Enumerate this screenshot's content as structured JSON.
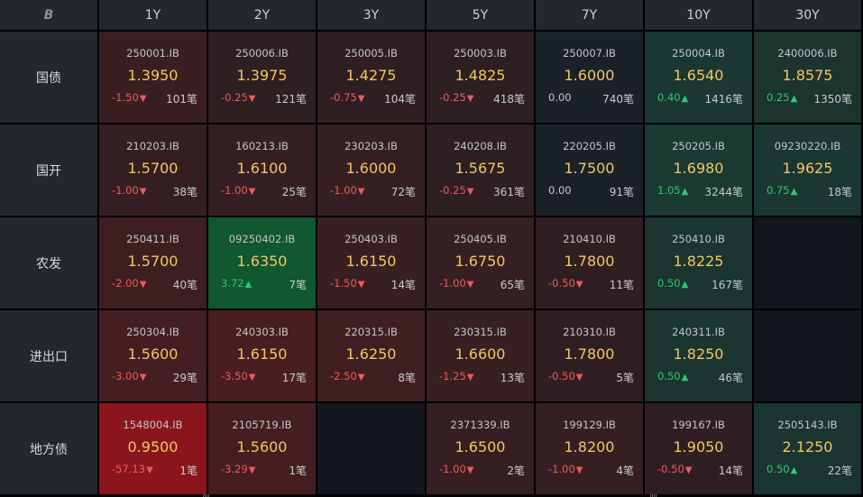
{
  "corner_label": "B",
  "headers": [
    "1Y",
    "2Y",
    "3Y",
    "5Y",
    "7Y",
    "10Y",
    "30Y"
  ],
  "rows": [
    {
      "label": "国债",
      "cells": [
        {
          "code": "250001.IB",
          "price": "1.3950",
          "change": "-1.50",
          "dir": "down",
          "count": "101笔",
          "bg": "#3a1f22"
        },
        {
          "code": "250006.IB",
          "price": "1.3975",
          "change": "-0.25",
          "dir": "down",
          "count": "121笔",
          "bg": "#2d1f22"
        },
        {
          "code": "250005.IB",
          "price": "1.4275",
          "change": "-0.75",
          "dir": "down",
          "count": "104笔",
          "bg": "#2f1f22"
        },
        {
          "code": "250003.IB",
          "price": "1.4825",
          "change": "-0.25",
          "dir": "down",
          "count": "418笔",
          "bg": "#2d1f22"
        },
        {
          "code": "250007.IB",
          "price": "1.6000",
          "change": "0.00",
          "dir": "flat",
          "count": "740笔",
          "bg": "#1a2128"
        },
        {
          "code": "250004.IB",
          "price": "1.6540",
          "change": "0.40",
          "dir": "up",
          "count": "1416笔",
          "bg": "#1b3731"
        },
        {
          "code": "2400006.IB",
          "price": "1.8575",
          "change": "0.25",
          "dir": "up",
          "count": "1350笔",
          "bg": "#1b342e"
        }
      ]
    },
    {
      "label": "国开",
      "cells": [
        {
          "code": "210203.IB",
          "price": "1.5700",
          "change": "-1.00",
          "dir": "down",
          "count": "38笔",
          "bg": "#361f22"
        },
        {
          "code": "160213.IB",
          "price": "1.6100",
          "change": "-1.00",
          "dir": "down",
          "count": "25笔",
          "bg": "#361f22"
        },
        {
          "code": "230203.IB",
          "price": "1.6000",
          "change": "-1.00",
          "dir": "down",
          "count": "72笔",
          "bg": "#361f22"
        },
        {
          "code": "240208.IB",
          "price": "1.5675",
          "change": "-0.25",
          "dir": "down",
          "count": "361笔",
          "bg": "#2d1f22"
        },
        {
          "code": "220205.IB",
          "price": "1.7500",
          "change": "0.00",
          "dir": "flat",
          "count": "91笔",
          "bg": "#1a2128"
        },
        {
          "code": "250205.IB",
          "price": "1.6980",
          "change": "1.05",
          "dir": "up",
          "count": "3244笔",
          "bg": "#1b3a32"
        },
        {
          "code": "09230220.IB",
          "price": "1.9625",
          "change": "0.75",
          "dir": "up",
          "count": "18笔",
          "bg": "#1b3731"
        }
      ]
    },
    {
      "label": "农发",
      "cells": [
        {
          "code": "250411.IB",
          "price": "1.5700",
          "change": "-2.00",
          "dir": "down",
          "count": "40笔",
          "bg": "#3d1f22"
        },
        {
          "code": "09250402.IB",
          "price": "1.6350",
          "change": "3.72",
          "dir": "up",
          "count": "7笔",
          "bg": "#11572f"
        },
        {
          "code": "250403.IB",
          "price": "1.6150",
          "change": "-1.50",
          "dir": "down",
          "count": "14笔",
          "bg": "#381f22"
        },
        {
          "code": "250405.IB",
          "price": "1.6750",
          "change": "-1.00",
          "dir": "down",
          "count": "65笔",
          "bg": "#361f22"
        },
        {
          "code": "210410.IB",
          "price": "1.7800",
          "change": "-0.50",
          "dir": "down",
          "count": "11笔",
          "bg": "#301f22"
        },
        {
          "code": "250410.IB",
          "price": "1.8225",
          "change": "0.50",
          "dir": "up",
          "count": "167笔",
          "bg": "#1b3530"
        },
        null
      ]
    },
    {
      "label": "进出口",
      "cells": [
        {
          "code": "250304.IB",
          "price": "1.5600",
          "change": "-3.00",
          "dir": "down",
          "count": "29笔",
          "bg": "#441e22"
        },
        {
          "code": "240303.IB",
          "price": "1.6150",
          "change": "-3.50",
          "dir": "down",
          "count": "17笔",
          "bg": "#471e22"
        },
        {
          "code": "220315.IB",
          "price": "1.6250",
          "change": "-2.50",
          "dir": "down",
          "count": "8笔",
          "bg": "#3f1f22"
        },
        {
          "code": "230315.IB",
          "price": "1.6600",
          "change": "-1.25",
          "dir": "down",
          "count": "13笔",
          "bg": "#371f22"
        },
        {
          "code": "210310.IB",
          "price": "1.7800",
          "change": "-0.50",
          "dir": "down",
          "count": "5笔",
          "bg": "#301f22"
        },
        {
          "code": "240311.IB",
          "price": "1.8250",
          "change": "0.50",
          "dir": "up",
          "count": "46笔",
          "bg": "#1b3530"
        },
        null
      ]
    },
    {
      "label": "地方债",
      "cells": [
        {
          "code": "1548004.IB",
          "price": "0.9500",
          "change": "-57.13",
          "dir": "down",
          "count": "1笔",
          "bg": "#8a151d"
        },
        {
          "code": "2105719.IB",
          "price": "1.5600",
          "change": "-3.29",
          "dir": "down",
          "count": "1笔",
          "bg": "#451e22"
        },
        null,
        {
          "code": "2371339.IB",
          "price": "1.6500",
          "change": "-1.00",
          "dir": "down",
          "count": "2笔",
          "bg": "#361f22"
        },
        {
          "code": "199129.IB",
          "price": "1.8200",
          "change": "-1.00",
          "dir": "down",
          "count": "4笔",
          "bg": "#361f22"
        },
        {
          "code": "199167.IB",
          "price": "1.9050",
          "change": "-0.50",
          "dir": "down",
          "count": "14笔",
          "bg": "#301f22"
        },
        {
          "code": "2505143.IB",
          "price": "2.1250",
          "change": "0.50",
          "dir": "up",
          "count": "22笔",
          "bg": "#1b3530"
        }
      ]
    }
  ],
  "arrows": {
    "down": "▼",
    "up": "▲",
    "flat": ""
  }
}
